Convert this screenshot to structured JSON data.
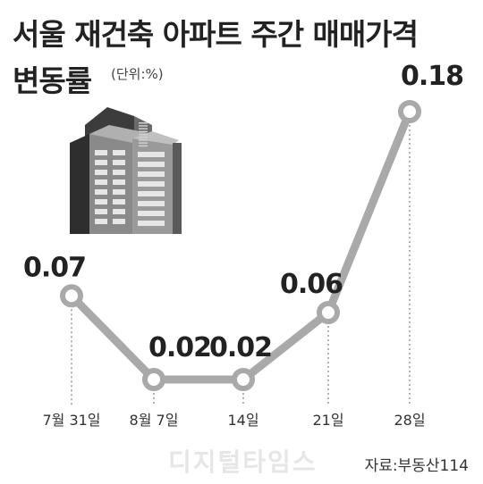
{
  "header": {
    "title_line1": "서울 재건축 아파트 주간 매매가격",
    "title_line2": "변동률",
    "unit": "(단위:%)"
  },
  "footer": {
    "source": "자료:부동산114",
    "watermark": "디지털타임스"
  },
  "icons": {
    "building": "apartment-building-icon"
  },
  "colors": {
    "line": "#a9a9a9",
    "marker_fill": "#ffffff",
    "marker_stroke": "#a9a9a9",
    "building_dark": "#555555",
    "building_light": "#dddddd"
  },
  "chart_data": {
    "type": "line",
    "title": "서울 재건축 아파트 주간 매매가격 변동률",
    "ylabel": "(단위:%)",
    "categories": [
      "7월 31일",
      "8월 7일",
      "14일",
      "21일",
      "28일"
    ],
    "series": [
      {
        "values": [
          0.07,
          0.02,
          0.02,
          0.06,
          0.18
        ]
      }
    ],
    "value_labels": [
      "0.07",
      "0.02",
      "0.02",
      "0.06",
      "0.18"
    ],
    "ylim": [
      0,
      0.2
    ],
    "grid": false,
    "dashed_drop_lines": true
  }
}
